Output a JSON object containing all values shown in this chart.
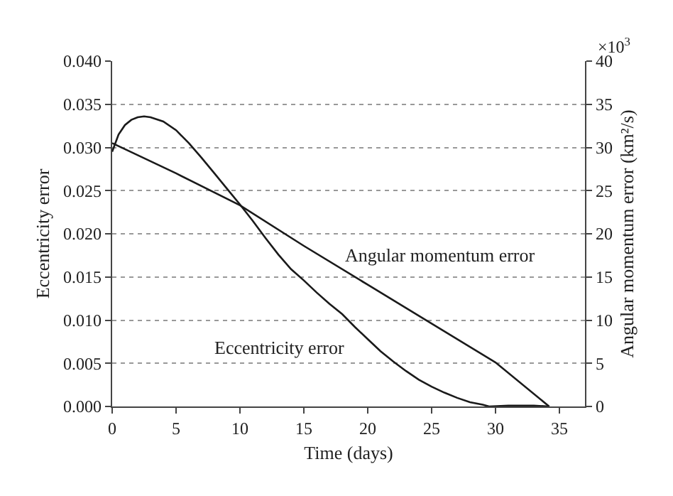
{
  "chart_data": {
    "type": "line",
    "xlabel": "Time (days)",
    "ylabel": "Eccentricity error",
    "y2label": "Angular momentum error (km²/s)",
    "xlim": [
      0,
      37
    ],
    "xticks": [
      0,
      5,
      10,
      15,
      20,
      25,
      30,
      35
    ],
    "ylim": [
      0,
      0.04
    ],
    "yticks": [
      {
        "value": 0,
        "label": "0.000"
      },
      {
        "value": 0.005,
        "label": "0.005"
      },
      {
        "value": 0.01,
        "label": "0.010"
      },
      {
        "value": 0.015,
        "label": "0.015"
      },
      {
        "value": 0.02,
        "label": "0.020"
      },
      {
        "value": 0.025,
        "label": "0.025"
      },
      {
        "value": 0.03,
        "label": "0.030"
      },
      {
        "value": 0.035,
        "label": "0.035"
      },
      {
        "value": 0.04,
        "label": "0.040"
      }
    ],
    "y2lim": [
      0,
      40
    ],
    "y2ticks": [
      0,
      5,
      10,
      15,
      20,
      25,
      30,
      35,
      40
    ],
    "grid": "y",
    "marker": "none",
    "line_style": "solid",
    "series": [
      {
        "color": "#1a1a1a",
        "x": [
          0,
          0.5,
          1,
          1.5,
          2,
          2.5,
          3,
          4,
          5,
          6,
          7,
          8,
          9,
          10,
          11,
          12,
          13,
          14,
          15,
          16,
          17,
          18,
          19,
          20,
          21,
          22,
          23,
          24,
          25,
          26,
          27,
          28,
          29,
          29.5,
          31,
          33,
          34.2
        ],
        "values": [
          0.0295,
          0.0315,
          0.0326,
          0.0332,
          0.0335,
          0.0336,
          0.0335,
          0.033,
          0.032,
          0.0305,
          0.0288,
          0.027,
          0.0252,
          0.0234,
          0.0215,
          0.0195,
          0.0176,
          0.0159,
          0.0146,
          0.0132,
          0.0119,
          0.0107,
          0.0092,
          0.0078,
          0.0064,
          0.0052,
          0.0041,
          0.0031,
          0.0023,
          0.0016,
          0.001,
          0.0005,
          0.0002,
          0,
          0.0001,
          0.0001,
          0
        ]
      },
      {
        "color": "#1a1a1a",
        "axis": "y2",
        "x": [
          0,
          5,
          10,
          15,
          20,
          25,
          30,
          34.2
        ],
        "values": [
          30.5,
          27.0,
          23.3,
          18.6,
          14.1,
          9.6,
          5.1,
          0
        ]
      }
    ],
    "annotations": [
      "×10$^{3}$",
      "Angular momentum error",
      "Eccentricity error"
    ]
  }
}
